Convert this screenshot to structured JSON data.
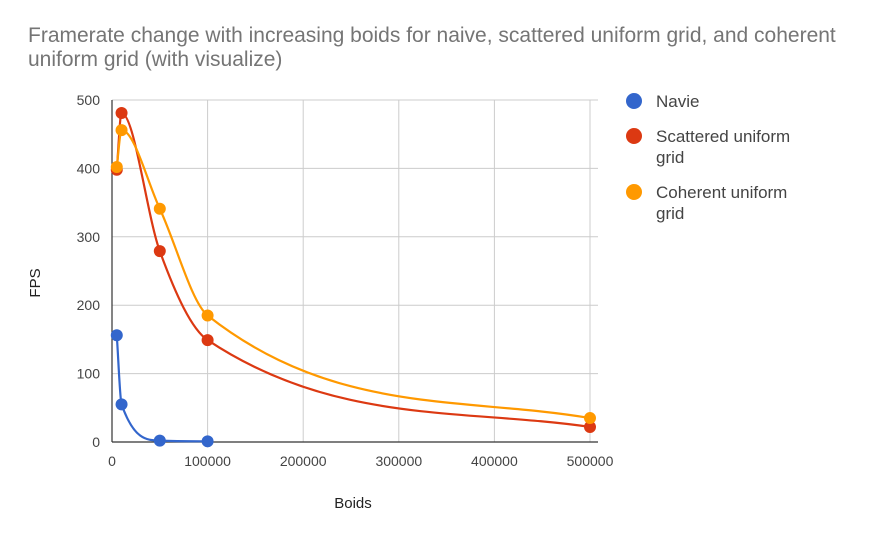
{
  "chart_data": {
    "type": "line",
    "title": "Framerate change with increasing boids for naive, scattered uniform grid, and coherent uniform grid (with visualize)",
    "xlabel": "Boids",
    "ylabel": "FPS",
    "xlim": [
      0,
      500000
    ],
    "ylim": [
      0,
      500
    ],
    "x_ticks": [
      "0",
      "100000",
      "200000",
      "300000",
      "400000",
      "500000"
    ],
    "y_ticks": [
      "0",
      "100",
      "200",
      "300",
      "400",
      "500"
    ],
    "grid": true,
    "legend_position": "right",
    "series": [
      {
        "name": "Navie",
        "color": "#3366cc",
        "points": [
          [
            5000,
            156
          ],
          [
            10000,
            55
          ],
          [
            50000,
            2
          ],
          [
            100000,
            1
          ]
        ]
      },
      {
        "name": "Scattered uniform grid",
        "color": "#dc3912",
        "points": [
          [
            5000,
            398
          ],
          [
            10000,
            481
          ],
          [
            50000,
            279
          ],
          [
            100000,
            149
          ],
          [
            500000,
            22
          ]
        ]
      },
      {
        "name": "Coherent uniform grid",
        "color": "#ff9900",
        "points": [
          [
            5000,
            402
          ],
          [
            10000,
            456
          ],
          [
            50000,
            341
          ],
          [
            100000,
            185
          ],
          [
            500000,
            35
          ]
        ]
      }
    ]
  }
}
